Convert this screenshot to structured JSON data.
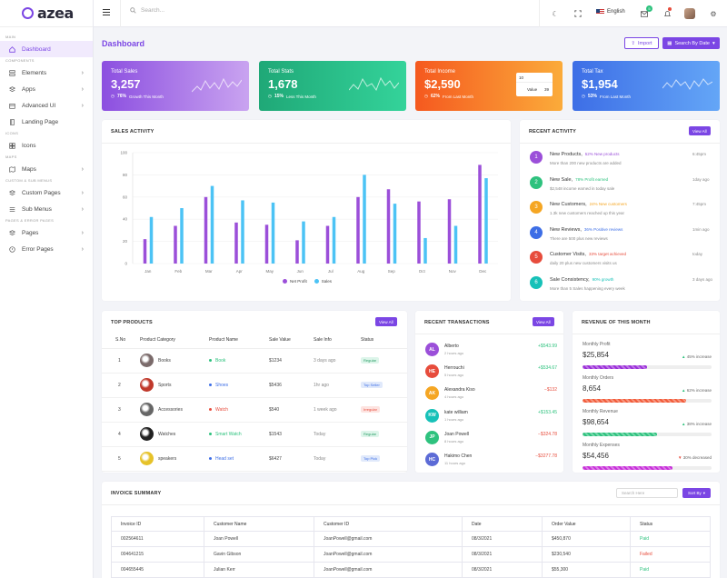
{
  "brand": {
    "name": "azea"
  },
  "sidebar": {
    "sections": [
      "MAIN",
      "COMPONENTS",
      "ICONS",
      "MAPS",
      "CUSTOM & SUB MENUS",
      "PAGES & ERROR PAGES"
    ],
    "items": [
      {
        "label": "Dashboard",
        "icon": "home-icon",
        "active": true
      },
      {
        "label": "Elements",
        "icon": "database-icon"
      },
      {
        "label": "Apps",
        "icon": "layers-icon"
      },
      {
        "label": "Advanced UI",
        "icon": "package-icon"
      },
      {
        "label": "Landing Page",
        "icon": "book-icon"
      },
      {
        "label": "Icons",
        "icon": "grid-icon"
      },
      {
        "label": "Maps",
        "icon": "map-icon"
      },
      {
        "label": "Custom Pages",
        "icon": "layers-icon"
      },
      {
        "label": "Sub Menus",
        "icon": "list-icon"
      },
      {
        "label": "Pages",
        "icon": "layers-icon"
      },
      {
        "label": "Error Pages",
        "icon": "alert-icon"
      }
    ]
  },
  "header": {
    "search_placeholder": "Search...",
    "language": "English",
    "mail_count": "5"
  },
  "page": {
    "title": "Dashboard",
    "import_label": "Import",
    "date_label": "Search By Date"
  },
  "stats": [
    {
      "label": "Total Sales",
      "value": "3,257",
      "pct": "76%",
      "note": "Growth This Month",
      "color1": "#8c4fe0",
      "color2": "#c9a3f0"
    },
    {
      "label": "Total Stats",
      "value": "1,678",
      "pct": "15%",
      "note": "Less This Month",
      "color1": "#1fa877",
      "color2": "#34d39a"
    },
    {
      "label": "Total Income",
      "value": "$2,590",
      "pct": "62%",
      "note": "From Last Month",
      "color1": "#f5591f",
      "color2": "#fbab3a"
    },
    {
      "label": "Total Tax",
      "value": "$1,954",
      "pct": "53%",
      "note": "From Last Month",
      "color1": "#3d6ee6",
      "color2": "#64a6f7"
    }
  ],
  "tooltip": {
    "x": "10",
    "label": "Value",
    "value": "39"
  },
  "sales_activity": {
    "title": "SALES ACTIVITY"
  },
  "chart_data": {
    "type": "bar",
    "categories": [
      "Jan",
      "Feb",
      "Mar",
      "Apr",
      "May",
      "Jun",
      "Jul",
      "Aug",
      "Sep",
      "Oct",
      "Nov",
      "Dec"
    ],
    "series": [
      {
        "name": "Net Profit",
        "color": "#9b4fd9",
        "values": [
          22,
          34,
          60,
          37,
          35,
          21,
          34,
          60,
          67,
          56,
          58,
          89
        ]
      },
      {
        "name": "Sales",
        "color": "#4cc3f5",
        "values": [
          42,
          50,
          70,
          57,
          55,
          38,
          42,
          80,
          54,
          23,
          34,
          77
        ]
      }
    ],
    "yticks": [
      0,
      20,
      40,
      60,
      80,
      100
    ],
    "ylim": [
      0,
      100
    ]
  },
  "recent_activity": {
    "title": "RECENT ACTIVITY",
    "view_all": "View All",
    "items": [
      {
        "n": "1",
        "title": "New Products,",
        "tag": "52% New products",
        "desc": "More than 200 new products are added",
        "time": "6:45pm",
        "color": "#9b4fd9"
      },
      {
        "n": "2",
        "title": "New Sale,",
        "tag": "78% Profit earned",
        "desc": "$2,548 income earned in today sale",
        "time": "1day ago",
        "color": "#2ec27e"
      },
      {
        "n": "3",
        "title": "New Customers,",
        "tag": "24% New customers",
        "desc": "1.3k new customers reached up this year",
        "time": "7:45pm",
        "color": "#f5a623"
      },
      {
        "n": "4",
        "title": "New Reviews,",
        "tag": "36% Positive reviews",
        "desc": "There are 500 plus new reviews",
        "time": "1min ago",
        "color": "#3d6ee6"
      },
      {
        "n": "5",
        "title": "Customer Visits,",
        "tag": "33% target achieved",
        "desc": "daily 20 plus new customers visits us",
        "time": "today",
        "color": "#e74c3c"
      },
      {
        "n": "6",
        "title": "Sale Consistency,",
        "tag": "90% growth",
        "desc": "More than 5 Sales happening every week",
        "time": "3 days ago",
        "color": "#17c1b8"
      }
    ]
  },
  "top_products": {
    "title": "TOP PRODUCTS",
    "view_all": "View All",
    "headers": [
      "S.No",
      "Product Category",
      "Product Name",
      "Sale Value",
      "Sale Info",
      "Status"
    ],
    "rows": [
      {
        "no": "1",
        "cat": "Books",
        "name": "Book",
        "value": "$1234",
        "info": "3 days ago",
        "status": "Regular",
        "dot": "#2ec27e",
        "sbg": "#ddf5ea",
        "sfg": "#2a9d66",
        "img": "#7a6a6a"
      },
      {
        "no": "2",
        "cat": "Sports",
        "name": "Shoes",
        "value": "$5436",
        "info": "1hr ago",
        "status": "Top Seller",
        "dot": "#3d6ee6",
        "sbg": "#e0e9fb",
        "sfg": "#3d6ee6",
        "img": "#c0392b"
      },
      {
        "no": "3",
        "cat": "Accessories",
        "name": "Watch",
        "value": "$540",
        "info": "1 week ago",
        "status": "Irregular",
        "dot": "#e74c3c",
        "sbg": "#fde3e0",
        "sfg": "#e74c3c",
        "img": "#666"
      },
      {
        "no": "4",
        "cat": "Watches",
        "name": "Smart Watch",
        "value": "$1543",
        "info": "Today",
        "status": "Regular",
        "dot": "#2ec27e",
        "sbg": "#ddf5ea",
        "sfg": "#2a9d66",
        "img": "#222"
      },
      {
        "no": "5",
        "cat": "speakers",
        "name": "Head set",
        "value": "$6427",
        "info": "Today",
        "status": "Top Pick",
        "dot": "#3d6ee6",
        "sbg": "#e0e9fb",
        "sfg": "#3d6ee6",
        "img": "#e6c229"
      }
    ]
  },
  "recent_transactions": {
    "title": "RECENT TRANSACTIONS",
    "view_all": "View All",
    "items": [
      {
        "initials": "AL",
        "name": "Alberto",
        "time": "2 hours ago",
        "amount": "+$543.99",
        "color": "#9b4fd9",
        "up": true
      },
      {
        "initials": "HE",
        "name": "Herrouchi",
        "time": "5 hours ago",
        "amount": "+$534.67",
        "color": "#e74c3c",
        "up": true
      },
      {
        "initials": "AK",
        "name": "Alexandra Kiso",
        "time": "4 hours ago",
        "amount": "−$132",
        "color": "#f5a623",
        "up": false
      },
      {
        "initials": "KW",
        "name": "kate william",
        "time": "1 hours ago",
        "amount": "+$153.45",
        "color": "#17c1b8",
        "up": true
      },
      {
        "initials": "JP",
        "name": "Joan Powell",
        "time": "8 hours ago",
        "amount": "−$324.78",
        "color": "#2ec27e",
        "up": false
      },
      {
        "initials": "HC",
        "name": "Hakimo Chen",
        "time": "11 hours ago",
        "amount": "−$3277.78",
        "color": "#5c6bd6",
        "up": false
      }
    ]
  },
  "revenue": {
    "title": "REVENUE OF THIS MONTH",
    "items": [
      {
        "label": "Monthly Profit",
        "value": "$25,854",
        "change": "45% increase",
        "up": true,
        "fill": 0.5,
        "color": "#9b2fd9"
      },
      {
        "label": "Monthly Orders",
        "value": "8,654",
        "change": "62% increase",
        "up": true,
        "fill": 0.8,
        "color": "#f25c3a"
      },
      {
        "label": "Monthly Revenue",
        "value": "$98,654",
        "change": "38% increase",
        "up": true,
        "fill": 0.58,
        "color": "#2ec27e"
      },
      {
        "label": "Monthly Expenses",
        "value": "$54,456",
        "change": "30% decreased",
        "up": false,
        "fill": 0.7,
        "color": "#c72fd9"
      }
    ]
  },
  "invoice": {
    "title": "INVOICE SUMMARY",
    "search_placeholder": "Search Here",
    "sort_label": "Sort By",
    "headers": [
      "Invoice ID",
      "Customer Name",
      "Customer ID",
      "Date",
      "Order Value",
      "Status"
    ],
    "rows": [
      {
        "id": "002564611",
        "name": "Joan Powell",
        "cid": "JoanPowell@gmail.com",
        "date": "08/3/2021",
        "value": "$450,870",
        "status": "Paid",
        "scolor": "#2ec27e"
      },
      {
        "id": "004641215",
        "name": "Gavin Gibson",
        "cid": "JoanPowell@gmail.com",
        "date": "08/3/2021",
        "value": "$230,540",
        "status": "Failed",
        "scolor": "#e74c3c"
      },
      {
        "id": "004655445",
        "name": "Julian Kerr",
        "cid": "JoanPowell@gmail.com",
        "date": "08/3/2021",
        "value": "$55,300",
        "status": "Paid",
        "scolor": "#2ec27e"
      }
    ]
  }
}
